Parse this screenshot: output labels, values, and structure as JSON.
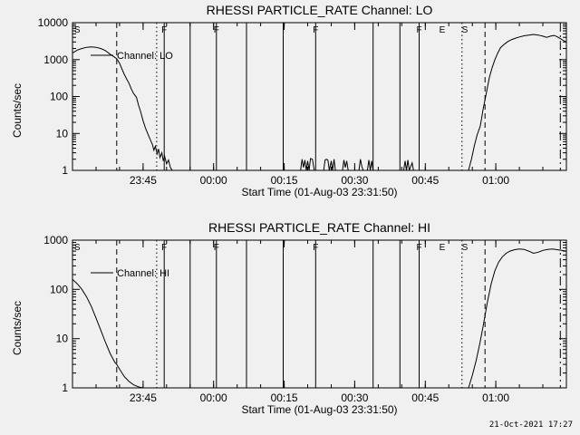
{
  "page": {
    "background": "#f0f0f0",
    "line_color": "#000000",
    "timestamp": "21-Oct-2021 17:27"
  },
  "chart_data": [
    {
      "type": "line",
      "title": "RHESSI PARTICLE_RATE Channel: LO",
      "xlabel": "Start Time (01-Aug-03 23:31:50)",
      "ylabel": "Counts/sec",
      "legend": "Channel: LO",
      "yscale": "log",
      "ylim": [
        1,
        10000
      ],
      "y_ticks": [
        {
          "v": 1,
          "label": "1"
        },
        {
          "v": 10,
          "label": "10"
        },
        {
          "v": 100,
          "label": "100"
        },
        {
          "v": 1000,
          "label": "1000"
        },
        {
          "v": 10000,
          "label": "10000"
        }
      ],
      "x_unit": "minutes after 23:30 UT",
      "xlim": [
        0,
        105
      ],
      "x_minor_step": 5,
      "x_ticks": [
        {
          "x": 15,
          "label": "23:45"
        },
        {
          "x": 30,
          "label": "00:00"
        },
        {
          "x": 45,
          "label": "00:15"
        },
        {
          "x": 60,
          "label": "00:30"
        },
        {
          "x": 75,
          "label": "00:45"
        },
        {
          "x": 90,
          "label": "01:00"
        }
      ],
      "series": [
        {
          "name": "Channel: LO",
          "x": [
            0,
            1,
            2,
            3,
            4,
            5,
            6,
            7,
            8,
            9,
            9.4,
            10,
            10.5,
            11,
            11.5,
            12,
            12.5,
            13,
            13.6,
            14,
            14.5,
            15,
            15.5,
            16,
            16.5,
            17,
            17.3,
            17.6,
            18,
            18.3,
            18.6,
            19,
            19.3,
            19.6,
            20,
            20.4,
            20.8,
            21.2,
            45,
            48.5,
            48.8,
            49.1,
            49.4,
            49.7,
            50,
            50.3,
            50.6,
            51,
            51.4,
            53.4,
            53.7,
            54,
            54.3,
            54.6,
            55,
            55.3,
            55.6,
            55.9,
            57.4,
            57.7,
            58,
            58.3,
            58.6,
            60.9,
            61.2,
            61.5,
            61.8,
            62.7,
            63,
            63.3,
            63.6,
            63.9,
            70.4,
            70.7,
            71,
            71.3,
            71.6,
            72.2,
            72.5,
            84.2,
            84.8,
            85.4,
            86,
            86.7,
            87.3,
            88,
            88.6,
            89.2,
            89.8,
            90.4,
            91,
            91.8,
            92.6,
            93.4,
            94.2,
            95,
            96,
            97,
            98,
            99,
            100,
            100.8,
            101.6,
            102.4,
            103,
            103.7,
            104.3,
            105
          ],
          "y": [
            1500,
            1800,
            2000,
            2150,
            2200,
            2150,
            2000,
            1750,
            1400,
            1150,
            1050,
            800,
            560,
            400,
            300,
            230,
            160,
            120,
            95,
            60,
            38,
            22,
            14,
            10,
            7,
            5,
            3.5,
            4.5,
            2.8,
            3.8,
            2.2,
            3,
            1.8,
            2.4,
            1.5,
            1.9,
            1.2,
            1,
            1,
            1,
            2,
            1.2,
            1.9,
            1,
            1.8,
            1,
            2.1,
            2,
            1,
            1,
            1.9,
            2,
            1.9,
            1,
            1.8,
            1,
            2,
            1,
            1,
            1.9,
            1.2,
            1.8,
            1,
            1,
            2,
            1.3,
            1,
            1,
            1.9,
            1,
            1.8,
            1,
            1,
            1.8,
            1,
            1.9,
            1,
            1.6,
            1,
            1,
            2,
            4.5,
            9,
            16,
            45,
            130,
            320,
            600,
            1000,
            1500,
            2100,
            2600,
            3100,
            3500,
            3800,
            4100,
            4400,
            4600,
            4800,
            4600,
            4300,
            4000,
            4300,
            4500,
            4200,
            3700,
            3300,
            3000
          ]
        }
      ],
      "event_lines": [
        {
          "x": 9.4,
          "style": "dashed"
        },
        {
          "x": 17.9,
          "style": "dotted"
        },
        {
          "x": 19.5,
          "style": "solid"
        },
        {
          "x": 25.0,
          "style": "solid"
        },
        {
          "x": 30.6,
          "style": "solid"
        },
        {
          "x": 37.0,
          "style": "solid"
        },
        {
          "x": 44.8,
          "style": "solid"
        },
        {
          "x": 51.7,
          "style": "solid"
        },
        {
          "x": 63.9,
          "style": "solid"
        },
        {
          "x": 69.6,
          "style": "solid"
        },
        {
          "x": 73.7,
          "style": "solid"
        },
        {
          "x": 82.8,
          "style": "dotted"
        },
        {
          "x": 87.7,
          "style": "dashed"
        },
        {
          "x": 103.7,
          "style": "dashdot"
        }
      ],
      "flags": [
        {
          "x": 1,
          "label": "S"
        },
        {
          "x": 19.5,
          "label": "F"
        },
        {
          "x": 30.6,
          "label": "F"
        },
        {
          "x": 51.7,
          "label": "F"
        },
        {
          "x": 73.7,
          "label": "F"
        },
        {
          "x": 78.6,
          "label": "E"
        },
        {
          "x": 83.4,
          "label": "S"
        }
      ]
    },
    {
      "type": "line",
      "title": "RHESSI PARTICLE_RATE Channel: HI",
      "xlabel": "Start Time (01-Aug-03 23:31:50)",
      "ylabel": "Counts/sec",
      "legend": "Channel: HI",
      "yscale": "log",
      "ylim": [
        1,
        1000
      ],
      "y_ticks": [
        {
          "v": 1,
          "label": "1"
        },
        {
          "v": 10,
          "label": "10"
        },
        {
          "v": 100,
          "label": "100"
        },
        {
          "v": 1000,
          "label": "1000"
        }
      ],
      "x_unit": "minutes after 23:30 UT",
      "xlim": [
        0,
        105
      ],
      "x_minor_step": 5,
      "x_ticks": [
        {
          "x": 15,
          "label": "23:45"
        },
        {
          "x": 30,
          "label": "00:00"
        },
        {
          "x": 45,
          "label": "00:15"
        },
        {
          "x": 60,
          "label": "00:30"
        },
        {
          "x": 75,
          "label": "00:45"
        },
        {
          "x": 90,
          "label": "01:00"
        }
      ],
      "series": [
        {
          "name": "Channel: HI",
          "x": [
            0,
            1,
            2,
            3,
            4,
            5,
            6,
            7,
            8,
            9,
            9.4,
            10,
            11,
            12,
            13,
            14,
            15,
            45,
            84.2,
            85,
            85.8,
            86.6,
            87.4,
            88.2,
            89,
            89.8,
            90.6,
            91.4,
            92.2,
            93,
            94,
            95,
            96,
            97,
            98,
            99,
            100,
            101,
            102,
            103,
            104,
            105
          ],
          "y": [
            160,
            130,
            100,
            70,
            45,
            26,
            15,
            8.5,
            5,
            3.3,
            3,
            2.4,
            1.7,
            1.35,
            1.15,
            1.05,
            1,
            1,
            1,
            1.8,
            3.5,
            8,
            20,
            55,
            130,
            240,
            360,
            460,
            540,
            600,
            640,
            660,
            650,
            600,
            540,
            570,
            620,
            650,
            660,
            640,
            620,
            600
          ]
        }
      ],
      "event_lines": [
        {
          "x": 9.4,
          "style": "dashed"
        },
        {
          "x": 17.9,
          "style": "dotted"
        },
        {
          "x": 19.5,
          "style": "solid"
        },
        {
          "x": 25.0,
          "style": "solid"
        },
        {
          "x": 30.6,
          "style": "solid"
        },
        {
          "x": 37.0,
          "style": "solid"
        },
        {
          "x": 44.8,
          "style": "solid"
        },
        {
          "x": 51.7,
          "style": "solid"
        },
        {
          "x": 63.9,
          "style": "solid"
        },
        {
          "x": 69.6,
          "style": "solid"
        },
        {
          "x": 73.7,
          "style": "solid"
        },
        {
          "x": 82.8,
          "style": "dotted"
        },
        {
          "x": 87.7,
          "style": "dashed"
        },
        {
          "x": 103.7,
          "style": "dashdot"
        }
      ],
      "flags": [
        {
          "x": 1,
          "label": "S"
        },
        {
          "x": 19.5,
          "label": "F"
        },
        {
          "x": 30.6,
          "label": "F"
        },
        {
          "x": 51.7,
          "label": "F"
        },
        {
          "x": 73.7,
          "label": "F"
        },
        {
          "x": 78.6,
          "label": "E"
        },
        {
          "x": 83.4,
          "label": "S"
        }
      ]
    }
  ]
}
